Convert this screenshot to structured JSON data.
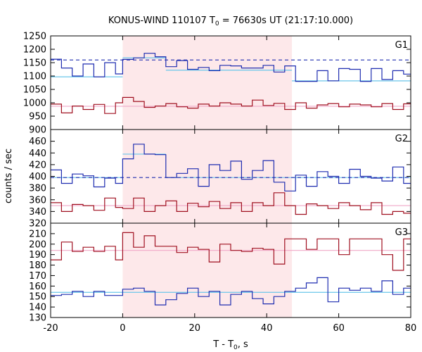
{
  "chart_data": {
    "type": "line",
    "title_prefix": "KONUS-WIND 110107 T",
    "title_sub": "0",
    "title_suffix": " = 76630s UT (21:17:10.000)",
    "xlabel_prefix": "T - T",
    "xlabel_sub": "0",
    "xlabel_suffix": ", s",
    "ylabel": "counts / sec",
    "xlim": [
      -20,
      80
    ],
    "xticks": [
      "-20",
      "0",
      "20",
      "40",
      "60",
      "80"
    ],
    "shaded_interval": [
      0,
      47
    ],
    "colors": {
      "shade": "#fde8ea",
      "blue": "#1f2db0",
      "red": "#a01020",
      "cyan": "#6ac6ea",
      "pink": "#f0a8c8"
    },
    "panels": [
      {
        "label": "G1",
        "ylim": [
          900,
          1250
        ],
        "yticks": [
          "900",
          "950",
          "1000",
          "1050",
          "1100",
          "1150",
          "1200",
          "1250"
        ],
        "blue_series": {
          "edges": [
            -20,
            -17,
            -14,
            -11,
            -8,
            -5,
            -2,
            0,
            3,
            6,
            9,
            12,
            15,
            18,
            21,
            24,
            27,
            30,
            33,
            36,
            39,
            42,
            45,
            48,
            51,
            54,
            57,
            60,
            63,
            66,
            69,
            72,
            75,
            78,
            80
          ],
          "values": [
            1163,
            1130,
            1100,
            1145,
            1097,
            1150,
            1108,
            1162,
            1168,
            1185,
            1172,
            1135,
            1158,
            1125,
            1132,
            1120,
            1140,
            1138,
            1130,
            1130,
            1140,
            1115,
            1138,
            1080,
            1080,
            1120,
            1082,
            1128,
            1125,
            1080,
            1128,
            1087,
            1120,
            1107
          ]
        },
        "red_series": {
          "edges": [
            -20,
            -17,
            -14,
            -11,
            -8,
            -5,
            -2,
            0,
            3,
            6,
            9,
            12,
            15,
            18,
            21,
            24,
            27,
            30,
            33,
            36,
            39,
            42,
            45,
            48,
            51,
            54,
            57,
            60,
            63,
            66,
            69,
            72,
            75,
            78,
            80
          ],
          "values": [
            995,
            962,
            988,
            975,
            994,
            960,
            1000,
            1020,
            1005,
            983,
            988,
            997,
            985,
            980,
            995,
            988,
            1000,
            995,
            988,
            1010,
            990,
            998,
            975,
            1000,
            980,
            992,
            997,
            985,
            995,
            992,
            985,
            997,
            975,
            996
          ]
        },
        "bg_segments": [
          {
            "x": [
              -20,
              0
            ],
            "y": 1097
          },
          {
            "x": [
              0,
              12
            ],
            "y": 1168
          },
          {
            "x": [
              12,
              47
            ],
            "y": 1122
          },
          {
            "x": [
              47,
              80
            ],
            "y": 1082
          }
        ],
        "blue_dashed_level": 1160,
        "pink_level": 987
      },
      {
        "label": "G2",
        "ylim": [
          320,
          480
        ],
        "yticks": [
          "320",
          "340",
          "360",
          "380",
          "400",
          "420",
          "440",
          "460"
        ],
        "blue_series": {
          "edges": [
            -20,
            -17,
            -14,
            -11,
            -8,
            -5,
            -2,
            0,
            3,
            6,
            9,
            12,
            15,
            18,
            21,
            24,
            27,
            30,
            33,
            36,
            39,
            42,
            45,
            48,
            51,
            54,
            57,
            60,
            63,
            66,
            69,
            72,
            75,
            78,
            80
          ],
          "values": [
            411,
            388,
            404,
            401,
            382,
            397,
            388,
            430,
            455,
            438,
            437,
            398,
            405,
            413,
            383,
            420,
            410,
            426,
            395,
            410,
            427,
            390,
            375,
            402,
            383,
            408,
            400,
            388,
            412,
            400,
            397,
            392,
            416,
            388
          ]
        },
        "red_series": {
          "edges": [
            -20,
            -17,
            -14,
            -11,
            -8,
            -5,
            -2,
            0,
            3,
            6,
            9,
            12,
            15,
            18,
            21,
            24,
            27,
            30,
            33,
            36,
            39,
            42,
            45,
            48,
            51,
            54,
            57,
            60,
            63,
            66,
            69,
            72,
            75,
            78,
            80
          ],
          "values": [
            355,
            340,
            352,
            350,
            342,
            363,
            347,
            345,
            363,
            340,
            350,
            358,
            340,
            354,
            348,
            357,
            345,
            355,
            340,
            355,
            350,
            372,
            350,
            335,
            353,
            350,
            345,
            355,
            350,
            343,
            355,
            335,
            340,
            337
          ]
        },
        "bg_segments": [
          {
            "x": [
              -20,
              0
            ],
            "y": 398
          },
          {
            "x": [
              0,
              12
            ],
            "y": 438
          },
          {
            "x": [
              12,
              80
            ],
            "y": 398
          }
        ],
        "blue_dashed_level": 398,
        "pink_level": 350
      },
      {
        "label": "G3",
        "ylim": [
          130,
          220
        ],
        "yticks": [
          "130",
          "140",
          "150",
          "160",
          "170",
          "180",
          "190",
          "200",
          "210"
        ],
        "blue_series": {
          "edges": [
            -20,
            -17,
            -14,
            -11,
            -8,
            -5,
            -2,
            0,
            3,
            6,
            9,
            12,
            15,
            18,
            21,
            24,
            27,
            30,
            33,
            36,
            39,
            42,
            45,
            48,
            51,
            54,
            57,
            60,
            63,
            66,
            69,
            72,
            75,
            78,
            80
          ],
          "values": [
            151,
            152,
            155,
            150,
            155,
            151,
            151,
            157,
            158,
            155,
            142,
            147,
            153,
            158,
            150,
            155,
            142,
            152,
            155,
            148,
            143,
            150,
            155,
            158,
            163,
            168,
            145,
            158,
            156,
            158,
            155,
            165,
            152,
            158
          ]
        },
        "red_series": {
          "edges": [
            -20,
            -17,
            -14,
            -11,
            -8,
            -5,
            -2,
            0,
            3,
            6,
            9,
            12,
            15,
            18,
            21,
            24,
            27,
            30,
            33,
            36,
            39,
            42,
            45,
            48,
            51,
            54,
            57,
            60,
            63,
            66,
            69,
            72,
            75,
            78,
            80
          ],
          "values": [
            185,
            202,
            193,
            197,
            193,
            198,
            185,
            211,
            197,
            208,
            198,
            198,
            192,
            197,
            195,
            183,
            200,
            194,
            193,
            196,
            195,
            181,
            205,
            205,
            195,
            205,
            205,
            190,
            205,
            205,
            205,
            190,
            175,
            205
          ]
        },
        "bg_segments": [
          {
            "x": [
              -20,
              80
            ],
            "y": 154
          }
        ],
        "pink_level": 194
      }
    ]
  }
}
